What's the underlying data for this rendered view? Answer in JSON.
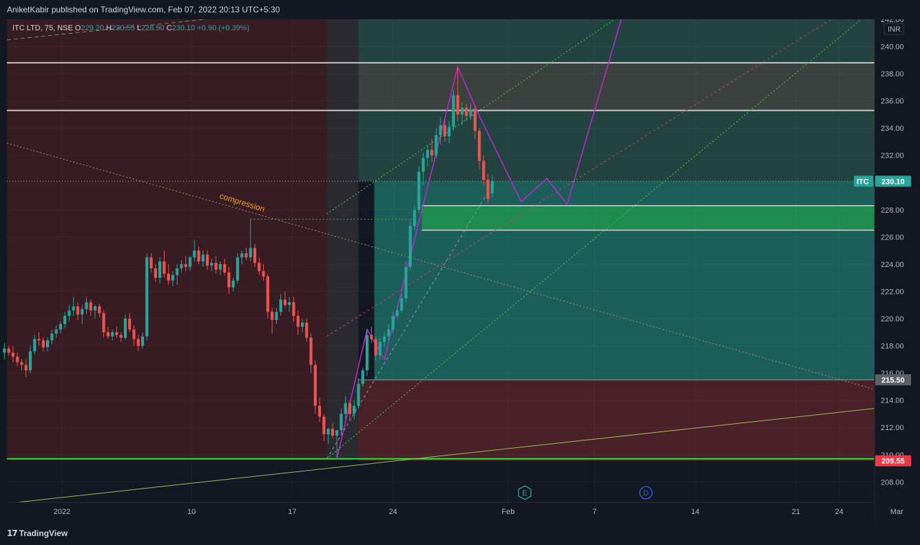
{
  "header": {
    "publisher": "AniketKabir published on TradingView.com, Feb 07, 2022 20:13 UTC+5:30"
  },
  "legend": {
    "symbol": "ITC LTD, 75, NSE",
    "open_label": "O",
    "open": "229.20",
    "high_label": "H",
    "high": "230.55",
    "low_label": "L",
    "low": "228.90",
    "close_label": "C",
    "close": "230.10",
    "change": "+0.90 (+0.39%)"
  },
  "footer": {
    "brand": "TradingView"
  },
  "chart_data": {
    "type": "candlestick",
    "currency": "INR",
    "ylim": [
      206.5,
      242
    ],
    "y_ticks": [
      "242.00",
      "240.00",
      "238.00",
      "236.00",
      "234.00",
      "232.00",
      "230.00",
      "228.00",
      "226.00",
      "224.00",
      "222.00",
      "220.00",
      "218.00",
      "216.00",
      "214.00",
      "212.00",
      "210.00",
      "208.00"
    ],
    "x_ticks": [
      {
        "label": "2022",
        "day": 0
      },
      {
        "label": "10",
        "day": 9
      },
      {
        "label": "17",
        "day": 16
      },
      {
        "label": "24",
        "day": 23
      },
      {
        "label": "Feb",
        "day": 31
      },
      {
        "label": "7",
        "day": 37
      },
      {
        "label": "14",
        "day": 44
      },
      {
        "label": "21",
        "day": 51
      },
      {
        "label": "24",
        "day": 54
      },
      {
        "label": "Mar",
        "day": 58
      }
    ],
    "price_labels": [
      {
        "label": "ITC",
        "value": "230.10",
        "color": "#26a69a"
      },
      {
        "value": "215.50",
        "color": "#5d606b"
      },
      {
        "value": "209.55",
        "color": "#f23645"
      }
    ],
    "horizontal_levels": [
      238.8,
      235.3,
      228.3,
      226.5,
      209.7
    ],
    "annotation": "compression",
    "event_markers": [
      "E",
      "D"
    ],
    "candles": [
      [
        -4,
        217.5,
        218.2,
        217.0,
        217.8
      ],
      [
        -3.7,
        217.8,
        218.0,
        217.3,
        217.5
      ],
      [
        -3.4,
        217.5,
        218.0,
        216.8,
        217.2
      ],
      [
        -3.1,
        217.2,
        217.5,
        216.5,
        216.8
      ],
      [
        -2.8,
        216.8,
        217.0,
        216.2,
        216.6
      ],
      [
        -2.5,
        216.6,
        217.0,
        215.7,
        216.2
      ],
      [
        -2.2,
        216.2,
        218.0,
        216.0,
        217.6
      ],
      [
        -1.9,
        217.6,
        218.8,
        217.4,
        218.5
      ],
      [
        -1.6,
        218.5,
        219.0,
        218.0,
        218.4
      ],
      [
        -1.3,
        218.4,
        218.6,
        217.6,
        217.9
      ],
      [
        -1.0,
        217.9,
        218.6,
        217.6,
        218.4
      ],
      [
        -0.7,
        218.4,
        219.2,
        218.1,
        218.9
      ],
      [
        -0.4,
        218.9,
        219.5,
        218.6,
        219.2
      ],
      [
        -0.1,
        219.2,
        219.8,
        218.9,
        219.6
      ],
      [
        0.2,
        219.6,
        220.5,
        219.3,
        220.2
      ],
      [
        0.5,
        220.2,
        221.0,
        219.8,
        220.6
      ],
      [
        0.8,
        220.6,
        221.6,
        220.2,
        220.9
      ],
      [
        1.1,
        220.9,
        221.2,
        219.9,
        220.3
      ],
      [
        1.4,
        220.3,
        221.0,
        219.6,
        220.7
      ],
      [
        1.7,
        220.7,
        221.6,
        220.3,
        221.2
      ],
      [
        2.0,
        221.2,
        221.4,
        220.2,
        220.6
      ],
      [
        2.3,
        220.6,
        221.0,
        220.0,
        220.9
      ],
      [
        2.6,
        220.9,
        221.1,
        220.1,
        220.4
      ],
      [
        2.9,
        220.4,
        220.6,
        218.6,
        219.0
      ],
      [
        3.2,
        219.0,
        219.4,
        218.5,
        218.7
      ],
      [
        3.5,
        218.7,
        219.2,
        218.4,
        219.0
      ],
      [
        3.8,
        219.0,
        219.4,
        218.6,
        218.8
      ],
      [
        4.1,
        218.8,
        219.0,
        218.3,
        218.6
      ],
      [
        4.4,
        218.6,
        220.3,
        218.4,
        220.0
      ],
      [
        4.7,
        220.0,
        220.4,
        219.0,
        219.2
      ],
      [
        5.0,
        219.2,
        219.5,
        218.0,
        218.5
      ],
      [
        5.3,
        218.5,
        218.8,
        217.6,
        218.0
      ],
      [
        5.6,
        218.0,
        219.0,
        217.8,
        218.7
      ],
      [
        5.9,
        218.7,
        224.8,
        218.4,
        224.5
      ],
      [
        6.2,
        224.5,
        224.8,
        223.4,
        223.7
      ],
      [
        6.5,
        223.7,
        224.0,
        222.7,
        223.0
      ],
      [
        6.8,
        223.0,
        224.5,
        222.6,
        224.2
      ],
      [
        7.1,
        224.2,
        225.0,
        223.0,
        223.3
      ],
      [
        7.4,
        223.3,
        224.0,
        222.5,
        222.8
      ],
      [
        7.7,
        222.8,
        223.5,
        222.4,
        223.2
      ],
      [
        8.0,
        223.2,
        224.0,
        222.5,
        223.7
      ],
      [
        8.3,
        223.7,
        224.3,
        223.4,
        224.0
      ],
      [
        8.6,
        224.0,
        224.6,
        223.5,
        223.8
      ],
      [
        8.9,
        223.8,
        224.6,
        223.5,
        224.5
      ],
      [
        9.2,
        224.5,
        225.8,
        224.2,
        225.0
      ],
      [
        9.5,
        225.0,
        225.3,
        224.0,
        224.2
      ],
      [
        9.8,
        224.2,
        225.0,
        223.8,
        224.7
      ],
      [
        10.1,
        224.7,
        225.0,
        223.6,
        223.9
      ],
      [
        10.4,
        223.9,
        224.4,
        223.5,
        224.1
      ],
      [
        10.7,
        224.1,
        224.6,
        223.3,
        223.6
      ],
      [
        11.0,
        223.6,
        224.2,
        223.2,
        224.0
      ],
      [
        11.3,
        224.0,
        224.4,
        223.2,
        223.4
      ],
      [
        11.6,
        223.4,
        223.8,
        221.8,
        222.3
      ],
      [
        11.9,
        222.3,
        223.0,
        222.0,
        222.8
      ],
      [
        12.2,
        222.8,
        224.8,
        222.6,
        224.5
      ],
      [
        12.5,
        224.5,
        225.0,
        224.0,
        224.8
      ],
      [
        12.8,
        224.8,
        225.2,
        224.3,
        224.5
      ],
      [
        13.1,
        224.5,
        227.3,
        224.2,
        225.2
      ],
      [
        13.4,
        225.2,
        225.5,
        223.8,
        224.1
      ],
      [
        13.7,
        224.1,
        224.5,
        223.2,
        223.5
      ],
      [
        14.0,
        223.5,
        224.0,
        222.8,
        223.1
      ],
      [
        14.3,
        223.1,
        223.3,
        220.0,
        220.5
      ],
      [
        14.6,
        220.5,
        220.8,
        218.9,
        219.9
      ],
      [
        14.9,
        219.9,
        220.8,
        219.6,
        220.5
      ],
      [
        15.2,
        220.5,
        221.8,
        220.2,
        221.4
      ],
      [
        15.5,
        221.4,
        222.0,
        220.8,
        221.0
      ],
      [
        15.8,
        221.0,
        221.6,
        220.5,
        221.2
      ],
      [
        16.1,
        221.2,
        221.6,
        219.8,
        220.2
      ],
      [
        16.4,
        220.2,
        220.6,
        218.8,
        219.4
      ],
      [
        16.7,
        219.4,
        220.0,
        219.0,
        219.7
      ],
      [
        17.0,
        219.7,
        220.0,
        218.3,
        218.6
      ],
      [
        17.3,
        218.6,
        218.9,
        216.0,
        216.6
      ],
      [
        17.6,
        216.6,
        216.9,
        213.0,
        213.6
      ],
      [
        17.9,
        213.6,
        214.2,
        212.4,
        212.8
      ],
      [
        18.2,
        212.8,
        213.0,
        211.0,
        211.5
      ],
      [
        18.5,
        211.5,
        212.0,
        210.8,
        211.9
      ],
      [
        18.8,
        211.9,
        212.3,
        211.2,
        211.4
      ],
      [
        19.1,
        211.4,
        211.6,
        209.7,
        211.8
      ],
      [
        19.4,
        211.8,
        213.4,
        211.4,
        213.0
      ],
      [
        19.7,
        213.0,
        214.3,
        212.6,
        213.8
      ],
      [
        20.0,
        213.8,
        214.0,
        212.6,
        213.0
      ],
      [
        20.3,
        213.0,
        214.0,
        212.6,
        213.6
      ],
      [
        20.6,
        213.6,
        215.6,
        213.4,
        215.2
      ],
      [
        20.9,
        215.2,
        216.4,
        215.0,
        216.2
      ],
      [
        21.2,
        216.2,
        219.2,
        215.8,
        218.8
      ],
      [
        21.5,
        218.8,
        219.4,
        218.2,
        218.5
      ],
      [
        21.8,
        218.5,
        218.7,
        216.9,
        217.3
      ],
      [
        22.1,
        217.3,
        218.6,
        217.0,
        218.3
      ],
      [
        22.4,
        218.3,
        219.0,
        217.9,
        218.7
      ],
      [
        22.7,
        218.7,
        219.6,
        218.3,
        219.2
      ],
      [
        23.0,
        219.2,
        220.5,
        218.9,
        220.2
      ],
      [
        23.3,
        220.2,
        221.0,
        220.0,
        220.6
      ],
      [
        23.6,
        220.6,
        221.8,
        220.4,
        221.5
      ],
      [
        23.9,
        221.5,
        224.2,
        221.2,
        223.8
      ],
      [
        24.2,
        223.8,
        227.2,
        223.5,
        226.8
      ],
      [
        24.5,
        226.8,
        228.3,
        226.5,
        228.0
      ],
      [
        24.8,
        228.0,
        231.2,
        227.8,
        230.8
      ],
      [
        25.1,
        230.8,
        232.2,
        229.8,
        231.8
      ],
      [
        25.4,
        231.8,
        232.8,
        231.2,
        232.4
      ],
      [
        25.7,
        232.4,
        233.2,
        231.5,
        232.0
      ],
      [
        26.0,
        232.0,
        234.0,
        231.8,
        233.5
      ],
      [
        26.3,
        233.5,
        234.8,
        232.8,
        234.2
      ],
      [
        26.6,
        234.2,
        234.6,
        233.0,
        233.4
      ],
      [
        26.9,
        233.4,
        234.5,
        232.9,
        234.1
      ],
      [
        27.2,
        234.1,
        236.8,
        233.8,
        236.4
      ],
      [
        27.5,
        236.4,
        238.5,
        234.5,
        235.0
      ],
      [
        27.8,
        235.0,
        235.9,
        234.2,
        235.5
      ],
      [
        28.1,
        235.5,
        235.8,
        234.5,
        234.9
      ],
      [
        28.4,
        234.9,
        235.8,
        234.6,
        235.4
      ],
      [
        28.7,
        235.4,
        235.7,
        233.2,
        233.8
      ],
      [
        29.0,
        233.8,
        234.0,
        231.0,
        231.6
      ],
      [
        29.3,
        231.6,
        232.0,
        229.8,
        230.2
      ],
      [
        29.6,
        230.2,
        230.6,
        228.5,
        228.8
      ],
      [
        29.9,
        229.2,
        230.55,
        228.9,
        230.1
      ]
    ]
  }
}
